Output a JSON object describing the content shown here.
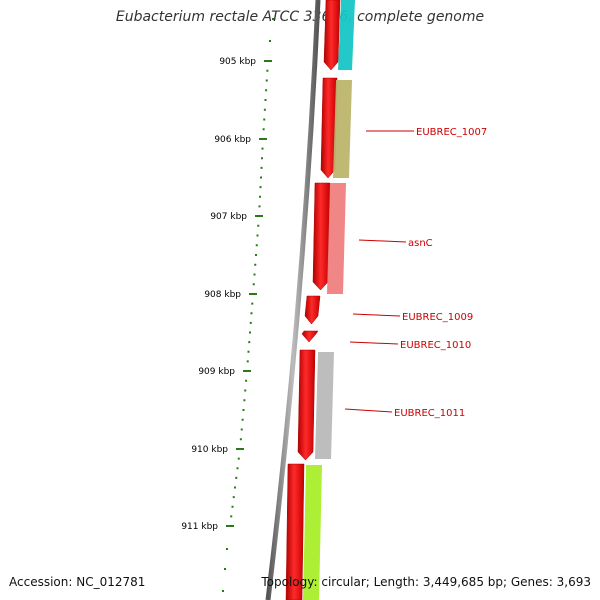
{
  "title": "Eubacterium rectale ATCC 33656, complete genome",
  "footer": {
    "accession": "Accession: NC_012781",
    "summary": "Topology: circular; Length: 3,449,685 bp; Genes: 3,693"
  },
  "colors": {
    "tick": "#2a7a1a",
    "backbone": "#8a8a8a",
    "forward_gene": "#ee1111",
    "label": "#cc0000"
  },
  "scale": {
    "unit": "kbp",
    "ticks": [
      905,
      906,
      907,
      908,
      909,
      910,
      911
    ],
    "tick_labels": [
      "905 kbp",
      "906 kbp",
      "907 kbp",
      "908 kbp",
      "909 kbp",
      "910 kbp",
      "911 kbp"
    ]
  },
  "genes": [
    {
      "label": "",
      "color": "#17c6c6"
    },
    {
      "label": "EUBREC_1007",
      "color": "#bdb56b"
    },
    {
      "label": "asnC",
      "color": "#ef7f7f"
    },
    {
      "label": "EUBREC_1009",
      "color": "#f2a0a0"
    },
    {
      "label": "EUBREC_1010",
      "color": "#dcdcdc"
    },
    {
      "label": "EUBREC_1011",
      "color": "#b9b9b9"
    },
    {
      "label": "",
      "color": "#a9ee2a"
    }
  ]
}
